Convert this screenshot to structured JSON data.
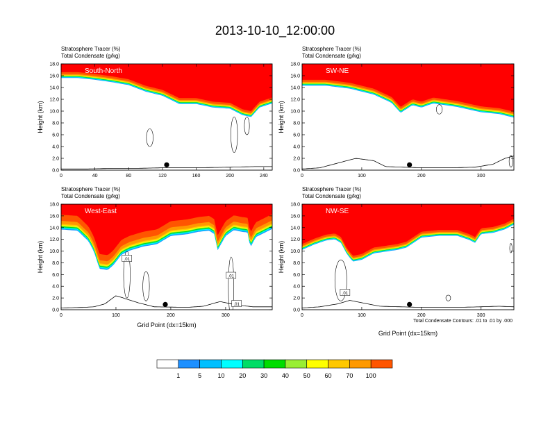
{
  "title": "2013-10-10_12:00:00",
  "chart_data": {
    "type": "contour_panels",
    "title": "2013-10-10_12:00:00",
    "header_lines": [
      "Stratosphere Tracer   (%)",
      "Total Condensate   (g/kg)"
    ],
    "ylabel": "Height (km)",
    "xlabel": "Grid Point (dx=15km)",
    "ylim": [
      0,
      18
    ],
    "yticks": [
      "0.0",
      "2.0",
      "4.0",
      "6.0",
      "8.0",
      "10.0",
      "12.0",
      "14.0",
      "16.0",
      "18.0"
    ],
    "contour_note": "Total Condensate Contours: .01 to .01 by .000",
    "box_label": ".01",
    "panels": [
      {
        "name": "South-North",
        "xlim": [
          0,
          250
        ],
        "xticks": [
          0,
          40,
          80,
          120,
          160,
          200,
          240
        ],
        "marker_x": 125,
        "tracer_base_km": [
          [
            0,
            15.6
          ],
          [
            20,
            15.6
          ],
          [
            40,
            15.3
          ],
          [
            60,
            14.9
          ],
          [
            80,
            14.4
          ],
          [
            100,
            13.3
          ],
          [
            120,
            12.6
          ],
          [
            140,
            11.2
          ],
          [
            160,
            11.2
          ],
          [
            180,
            10.6
          ],
          [
            200,
            10.4
          ],
          [
            215,
            9.3
          ],
          [
            225,
            9.0
          ],
          [
            235,
            10.6
          ],
          [
            250,
            11.3
          ]
        ],
        "terrain_km": [
          [
            0,
            0.2
          ],
          [
            30,
            0.2
          ],
          [
            60,
            0.3
          ],
          [
            90,
            0.3
          ],
          [
            120,
            0.4
          ],
          [
            160,
            0.4
          ],
          [
            200,
            0.5
          ],
          [
            230,
            0.6
          ],
          [
            250,
            0.6
          ]
        ]
      },
      {
        "name": "SW-NE",
        "xlim": [
          0,
          355
        ],
        "xticks": [
          0,
          100,
          200,
          300
        ],
        "marker_x": 180,
        "tracer_base_km": [
          [
            0,
            14.3
          ],
          [
            40,
            14.3
          ],
          [
            80,
            13.8
          ],
          [
            120,
            12.8
          ],
          [
            150,
            11.4
          ],
          [
            165,
            9.7
          ],
          [
            185,
            11.0
          ],
          [
            200,
            10.6
          ],
          [
            220,
            11.3
          ],
          [
            260,
            10.7
          ],
          [
            300,
            9.8
          ],
          [
            330,
            9.5
          ],
          [
            355,
            8.9
          ]
        ],
        "terrain_km": [
          [
            0,
            0.2
          ],
          [
            30,
            0.4
          ],
          [
            60,
            1.2
          ],
          [
            90,
            2.0
          ],
          [
            120,
            1.6
          ],
          [
            140,
            0.6
          ],
          [
            200,
            0.4
          ],
          [
            250,
            0.4
          ],
          [
            290,
            0.5
          ],
          [
            320,
            1.0
          ],
          [
            340,
            2.0
          ],
          [
            355,
            2.4
          ]
        ]
      },
      {
        "name": "West-East",
        "xlim": [
          0,
          385
        ],
        "xticks": [
          0,
          100,
          200,
          300
        ],
        "marker_x": 190,
        "tracer_base_km": [
          [
            0,
            13.7
          ],
          [
            30,
            13.5
          ],
          [
            50,
            11.7
          ],
          [
            60,
            9.9
          ],
          [
            70,
            7.0
          ],
          [
            85,
            6.8
          ],
          [
            95,
            7.6
          ],
          [
            110,
            9.4
          ],
          [
            125,
            10.1
          ],
          [
            150,
            10.8
          ],
          [
            175,
            11.2
          ],
          [
            200,
            12.6
          ],
          [
            230,
            12.9
          ],
          [
            250,
            13.3
          ],
          [
            270,
            13.5
          ],
          [
            280,
            12.9
          ],
          [
            285,
            10.1
          ],
          [
            300,
            12.6
          ],
          [
            315,
            13.6
          ],
          [
            330,
            13.3
          ],
          [
            340,
            13.2
          ],
          [
            345,
            10.6
          ],
          [
            355,
            12.4
          ],
          [
            385,
            13.8
          ]
        ],
        "terrain_km": [
          [
            0,
            0.3
          ],
          [
            40,
            0.4
          ],
          [
            60,
            0.5
          ],
          [
            80,
            1.0
          ],
          [
            100,
            2.4
          ],
          [
            120,
            1.8
          ],
          [
            140,
            1.2
          ],
          [
            170,
            0.5
          ],
          [
            230,
            0.4
          ],
          [
            260,
            0.6
          ],
          [
            290,
            1.4
          ],
          [
            320,
            0.8
          ],
          [
            350,
            0.5
          ],
          [
            385,
            0.5
          ]
        ]
      },
      {
        "name": "NW-SE",
        "xlim": [
          0,
          355
        ],
        "xticks": [
          0,
          100,
          200,
          300
        ],
        "marker_x": 180,
        "tracer_base_km": [
          [
            0,
            10.2
          ],
          [
            20,
            11.1
          ],
          [
            40,
            11.8
          ],
          [
            55,
            12.0
          ],
          [
            65,
            11.4
          ],
          [
            75,
            9.5
          ],
          [
            85,
            8.2
          ],
          [
            100,
            8.5
          ],
          [
            120,
            9.6
          ],
          [
            140,
            9.9
          ],
          [
            160,
            10.2
          ],
          [
            175,
            10.6
          ],
          [
            200,
            12.3
          ],
          [
            230,
            12.6
          ],
          [
            260,
            12.6
          ],
          [
            280,
            11.9
          ],
          [
            290,
            11.4
          ],
          [
            300,
            12.9
          ],
          [
            320,
            13.1
          ],
          [
            340,
            13.7
          ],
          [
            355,
            14.5
          ]
        ],
        "terrain_km": [
          [
            0,
            0.3
          ],
          [
            30,
            0.5
          ],
          [
            60,
            1.0
          ],
          [
            80,
            1.6
          ],
          [
            100,
            1.2
          ],
          [
            130,
            0.6
          ],
          [
            200,
            0.4
          ],
          [
            260,
            0.4
          ],
          [
            300,
            0.5
          ],
          [
            330,
            0.6
          ],
          [
            355,
            0.5
          ]
        ]
      }
    ],
    "colorbar": {
      "levels": [
        "1",
        "5",
        "10",
        "20",
        "30",
        "40",
        "50",
        "60",
        "70",
        "100"
      ],
      "colors": [
        "#ffffff",
        "#1e90ff",
        "#00bfff",
        "#00ffff",
        "#00e080",
        "#00dd00",
        "#99ee33",
        "#ffff00",
        "#ffc800",
        "#ff9900",
        "#ff5500",
        "#ff0000"
      ]
    }
  }
}
